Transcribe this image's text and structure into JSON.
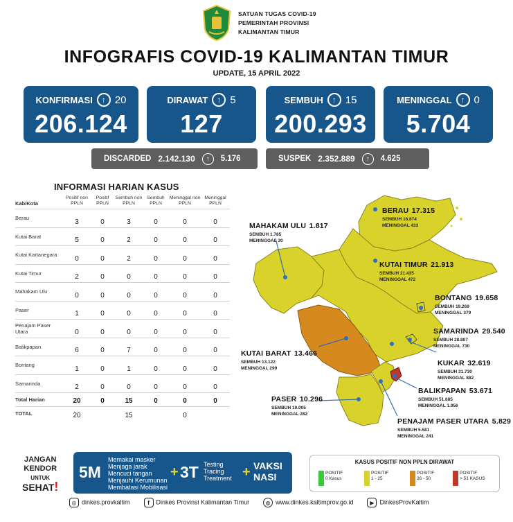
{
  "header": {
    "line1": "SATUAN TUGAS COVID-19",
    "line2": "PEMERINTAH PROVINSI",
    "line3": "KALIMANTAN TIMUR",
    "title": "INFOGRAFIS COVID-19 KALIMANTAN TIMUR",
    "update": "UPDATE, 15 APRIL 2022"
  },
  "cards": [
    {
      "label": "KONFIRMASI",
      "delta": "20",
      "value": "206.124"
    },
    {
      "label": "DIRAWAT",
      "delta": "5",
      "value": "127"
    },
    {
      "label": "SEMBUH",
      "delta": "15",
      "value": "200.293"
    },
    {
      "label": "MENINGGAL",
      "delta": "0",
      "value": "5.704"
    }
  ],
  "pills": {
    "discarded": {
      "label": "DISCARDED",
      "value": "2.142.130",
      "delta": "5.176"
    },
    "suspek": {
      "label": "SUSPEK",
      "value": "2.352.889",
      "delta": "4.625"
    }
  },
  "table": {
    "title": "INFORMASI HARIAN KASUS",
    "headers": [
      "Kab/Kota",
      "Positif non PPLN",
      "Positif PPLN",
      "Sembuh non PPLN",
      "Sembuh PPLN",
      "Meninggal non PPLN",
      "Meninggal PPLN"
    ],
    "rows": [
      [
        "Berau",
        "3",
        "0",
        "3",
        "0",
        "0",
        "0"
      ],
      [
        "Kutai Barat",
        "5",
        "0",
        "2",
        "0",
        "0",
        "0"
      ],
      [
        "Kutai Kartanegara",
        "0",
        "0",
        "2",
        "0",
        "0",
        "0"
      ],
      [
        "Kutai Timur",
        "2",
        "0",
        "0",
        "0",
        "0",
        "0"
      ],
      [
        "Mahakam Ulu",
        "0",
        "0",
        "0",
        "0",
        "0",
        "0"
      ],
      [
        "Paser",
        "1",
        "0",
        "0",
        "0",
        "0",
        "0"
      ],
      [
        "Penajam Paser Utara",
        "0",
        "0",
        "0",
        "0",
        "0",
        "0"
      ],
      [
        "Balikpapan",
        "6",
        "0",
        "7",
        "0",
        "0",
        "0"
      ],
      [
        "Bontang",
        "1",
        "0",
        "1",
        "0",
        "0",
        "0"
      ],
      [
        "Samarinda",
        "2",
        "0",
        "0",
        "0",
        "0",
        "0"
      ]
    ],
    "total_harian": [
      "Total Harian",
      "20",
      "0",
      "15",
      "0",
      "0",
      "0"
    ],
    "total": {
      "label": "TOTAL",
      "positif": "20",
      "sembuh": "15",
      "meninggal": "0"
    }
  },
  "map": {
    "regions": [
      {
        "name": "MAHAKAM ULU",
        "value": "1.817",
        "sembuh": "SEMBUH 1.785",
        "meninggal": "MENINGGAL 30"
      },
      {
        "name": "BERAU",
        "value": "17.315",
        "sembuh": "SEMBUH 16.874",
        "meninggal": "MENINGGAL 433"
      },
      {
        "name": "KUTAI TIMUR",
        "value": "21.913",
        "sembuh": "SEMBUH 21.435",
        "meninggal": "MENINGGAL 472"
      },
      {
        "name": "BONTANG",
        "value": "19.658",
        "sembuh": "SEMBUH 19.269",
        "meninggal": "MENINGGAL 379"
      },
      {
        "name": "SAMARINDA",
        "value": "29.540",
        "sembuh": "SEMBUH 28.807",
        "meninggal": "MENINGGAL 730"
      },
      {
        "name": "KUTAI BARAT",
        "value": "13.466",
        "sembuh": "SEMBUH 13.122",
        "meninggal": "MENINGGAL 299"
      },
      {
        "name": "KUKAR",
        "value": "32.619",
        "sembuh": "SEMBUH 31.730",
        "meninggal": "MENINGGAL 882"
      },
      {
        "name": "BALIKPAPAN",
        "value": "53.671",
        "sembuh": "SEMBUH 51.685",
        "meninggal": "MENINGGAL 1.956"
      },
      {
        "name": "PASER",
        "value": "10.296",
        "sembuh": "SEMBUH 10.005",
        "meninggal": "MENINGGAL 282"
      },
      {
        "name": "PENAJAM PASER UTARA",
        "value": "5.829",
        "sembuh": "SEMBUH 5.581",
        "meninggal": "MENINGGAL 241"
      }
    ],
    "colors": {
      "yellow": "#d9d22a",
      "orange": "#d68a1e",
      "red": "#c0392b",
      "green": "#3cc83c"
    }
  },
  "campaign": {
    "jangan": "JANGAN",
    "kendor": "KENDOR",
    "untuk": "UNTUK",
    "sehat": "SEHAT",
    "m5": "5M",
    "m5_items": [
      "Memakai masker",
      "Menjaga jarak",
      "Mencuci tangan",
      "Menjauhi Kerumunan",
      "Membatasi Mobilisasi"
    ],
    "plus": "+",
    "t3": "3T",
    "t3_items": [
      "Testing",
      "Tracing",
      "Treatment"
    ],
    "vaksi": "VAKSI",
    "nasi": "NASI"
  },
  "legend": {
    "title": "KASUS POSITIF NON PPLN DIRAWAT",
    "items": [
      {
        "l1": "POSITIF",
        "l2": "0 Kasus",
        "color": "#3cc83c"
      },
      {
        "l1": "POSITIF",
        "l2": "1 - 25",
        "color": "#d9d22a"
      },
      {
        "l1": "POSITIF",
        "l2": "26 - 50",
        "color": "#d68a1e"
      },
      {
        "l1": "POSITIF",
        "l2": "> 51 KASUS",
        "color": "#c0392b"
      }
    ]
  },
  "footer": {
    "instagram": "dinkes.provkaltim",
    "facebook": "Dinkes Provinsi Kalimantan Timur",
    "website": "www.dinkes.kaltimprov.go.id",
    "youtube": "DinkesProvKaltim"
  }
}
